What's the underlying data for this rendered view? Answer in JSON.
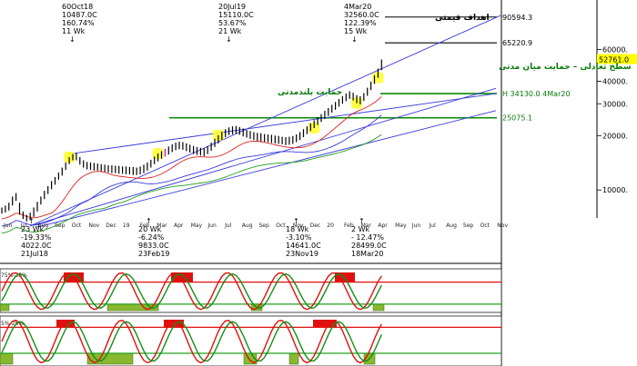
{
  "chart_data": {
    "type": "candlestick",
    "y_scale": "log",
    "ylim": [
      7000,
      105000
    ],
    "x_months": [
      "Jun",
      "Jul",
      "Aug",
      "Sep",
      "Oct",
      "Nov",
      "Dec",
      "19",
      "Feb",
      "Mar",
      "Apr",
      "May",
      "Jun",
      "Jul",
      "Aug",
      "Sep",
      "Oct",
      "Nov",
      "Dec",
      "20",
      "Feb",
      "Mar",
      "Apr",
      "May",
      "Jun",
      "Jul",
      "Aug",
      "Sep",
      "Oct",
      "Nov"
    ],
    "y_ticks": [
      {
        "v": 60000,
        "label": "60000."
      },
      {
        "v": 40000,
        "label": "40000."
      },
      {
        "v": 30000,
        "label": "30000."
      },
      {
        "v": 20000,
        "label": "20000."
      },
      {
        "v": 10000,
        "label": "10000."
      }
    ],
    "last_price": {
      "v": 52761,
      "label": "52761.0"
    },
    "target_levels": [
      {
        "v": 90594.3,
        "label": "90594.3"
      },
      {
        "v": 65220.9,
        "label": "65220.9"
      }
    ],
    "horizontal_levels": [
      {
        "v": 34130,
        "label": "H 34130.0 4Mar20"
      },
      {
        "v": 25075.1,
        "label": "25075.1"
      }
    ],
    "annotations_fa": {
      "targets": "اهداف قیمتی",
      "mid_support": "سطح تعادلی – حمایت میان مدتی",
      "long_support": "حمایت بلندمدتی"
    },
    "peaks": [
      {
        "lines": [
          "60Oct18",
          "10487.0C",
          "160.74%",
          "11 Wk"
        ]
      },
      {
        "lines": [
          "20Jul19",
          "15110.0C",
          "53.67%",
          "21 Wk"
        ]
      },
      {
        "lines": [
          "4Mar20",
          "32560.0C",
          "122.39%",
          "15 Wk"
        ]
      }
    ],
    "troughs": [
      {
        "lines": [
          "23 Wk",
          "-19.33%",
          "4022.0C",
          "21Jul18"
        ]
      },
      {
        "lines": [
          "20 Wk",
          "-6.24%",
          "9833.0C",
          "23Feb19"
        ]
      },
      {
        "lines": [
          "18 Wk",
          "-3.10%",
          "14641.0C",
          "23Nov19"
        ]
      },
      {
        "lines": [
          "2 Wk",
          "- 12.47%",
          "28499.0C",
          "18Mar20"
        ]
      }
    ],
    "osc1_label": "75%-25%",
    "osc2_label": "5%-25%",
    "price_series": [
      {
        "h": 8000,
        "l": 7400
      },
      {
        "h": 8200,
        "l": 7500
      },
      {
        "h": 8500,
        "l": 7700
      },
      {
        "h": 9200,
        "l": 8200
      },
      {
        "h": 9600,
        "l": 8700
      },
      {
        "h": 8500,
        "l": 7300
      },
      {
        "h": 7600,
        "l": 6900
      },
      {
        "h": 7300,
        "l": 6700
      },
      {
        "h": 7500,
        "l": 6800
      },
      {
        "h": 8000,
        "l": 7100
      },
      {
        "h": 8600,
        "l": 7600
      },
      {
        "h": 9200,
        "l": 8300
      },
      {
        "h": 9900,
        "l": 8900
      },
      {
        "h": 10500,
        "l": 9500
      },
      {
        "h": 11200,
        "l": 10100
      },
      {
        "h": 11800,
        "l": 10700
      },
      {
        "h": 12500,
        "l": 11400
      },
      {
        "h": 13300,
        "l": 12000
      },
      {
        "h": 14200,
        "l": 12900
      },
      {
        "h": 15200,
        "l": 13900
      },
      {
        "h": 15800,
        "l": 14600
      },
      {
        "h": 16000,
        "l": 14600
      },
      {
        "h": 15200,
        "l": 13800
      },
      {
        "h": 14600,
        "l": 13300
      },
      {
        "h": 14300,
        "l": 13000
      },
      {
        "h": 14200,
        "l": 12900
      },
      {
        "h": 14100,
        "l": 12800
      },
      {
        "h": 14000,
        "l": 12800
      },
      {
        "h": 13900,
        "l": 12700
      },
      {
        "h": 13800,
        "l": 12600
      },
      {
        "h": 13700,
        "l": 12500
      },
      {
        "h": 13700,
        "l": 12400
      },
      {
        "h": 13600,
        "l": 12400
      },
      {
        "h": 13600,
        "l": 12300
      },
      {
        "h": 13500,
        "l": 12300
      },
      {
        "h": 13500,
        "l": 12200
      },
      {
        "h": 13400,
        "l": 12200
      },
      {
        "h": 13400,
        "l": 12100
      },
      {
        "h": 13300,
        "l": 12100
      },
      {
        "h": 13500,
        "l": 12200
      },
      {
        "h": 13800,
        "l": 12400
      },
      {
        "h": 14200,
        "l": 12800
      },
      {
        "h": 14700,
        "l": 13300
      },
      {
        "h": 15300,
        "l": 13900
      },
      {
        "h": 15900,
        "l": 14400
      },
      {
        "h": 16400,
        "l": 14900
      },
      {
        "h": 16900,
        "l": 15300
      },
      {
        "h": 17400,
        "l": 15700
      },
      {
        "h": 17900,
        "l": 16200
      },
      {
        "h": 18300,
        "l": 16600
      },
      {
        "h": 18500,
        "l": 16800
      },
      {
        "h": 18400,
        "l": 16700
      },
      {
        "h": 18100,
        "l": 16400
      },
      {
        "h": 17800,
        "l": 16100
      },
      {
        "h": 17500,
        "l": 15800
      },
      {
        "h": 17300,
        "l": 15600
      },
      {
        "h": 17100,
        "l": 15500
      },
      {
        "h": 17000,
        "l": 15400
      },
      {
        "h": 17500,
        "l": 15800
      },
      {
        "h": 18300,
        "l": 16500
      },
      {
        "h": 19200,
        "l": 17300
      },
      {
        "h": 20100,
        "l": 18100
      },
      {
        "h": 21000,
        "l": 18900
      },
      {
        "h": 21700,
        "l": 19600
      },
      {
        "h": 22200,
        "l": 20100
      },
      {
        "h": 22500,
        "l": 20300
      },
      {
        "h": 22600,
        "l": 20500
      },
      {
        "h": 22300,
        "l": 20200
      },
      {
        "h": 21900,
        "l": 19800
      },
      {
        "h": 21500,
        "l": 19500
      },
      {
        "h": 21200,
        "l": 19200
      },
      {
        "h": 20900,
        "l": 18900
      },
      {
        "h": 20700,
        "l": 18700
      },
      {
        "h": 20600,
        "l": 18600
      },
      {
        "h": 20400,
        "l": 18500
      },
      {
        "h": 20300,
        "l": 18400
      },
      {
        "h": 20200,
        "l": 18200
      },
      {
        "h": 20000,
        "l": 18100
      },
      {
        "h": 19900,
        "l": 18000
      },
      {
        "h": 19700,
        "l": 17900
      },
      {
        "h": 19600,
        "l": 17700
      },
      {
        "h": 19700,
        "l": 17800
      },
      {
        "h": 19900,
        "l": 18000
      },
      {
        "h": 20300,
        "l": 18400
      },
      {
        "h": 20900,
        "l": 18900
      },
      {
        "h": 21700,
        "l": 19600
      },
      {
        "h": 22500,
        "l": 20400
      },
      {
        "h": 23400,
        "l": 21200
      },
      {
        "h": 24300,
        "l": 22000
      },
      {
        "h": 25300,
        "l": 22900
      },
      {
        "h": 26300,
        "l": 23800
      },
      {
        "h": 27400,
        "l": 24700
      },
      {
        "h": 28400,
        "l": 25700
      },
      {
        "h": 29600,
        "l": 26800
      },
      {
        "h": 30700,
        "l": 27800
      },
      {
        "h": 31900,
        "l": 28900
      },
      {
        "h": 33100,
        "l": 30000
      },
      {
        "h": 34200,
        "l": 31000
      },
      {
        "h": 35200,
        "l": 31900
      },
      {
        "h": 34500,
        "l": 31300
      },
      {
        "h": 33500,
        "l": 30200
      },
      {
        "h": 33000,
        "l": 29800
      },
      {
        "h": 34400,
        "l": 31100
      },
      {
        "h": 36800,
        "l": 33200
      },
      {
        "h": 39800,
        "l": 35700
      },
      {
        "h": 43100,
        "l": 38600
      },
      {
        "h": 47000,
        "l": 41800
      },
      {
        "h": 52761,
        "l": 46000
      }
    ]
  }
}
